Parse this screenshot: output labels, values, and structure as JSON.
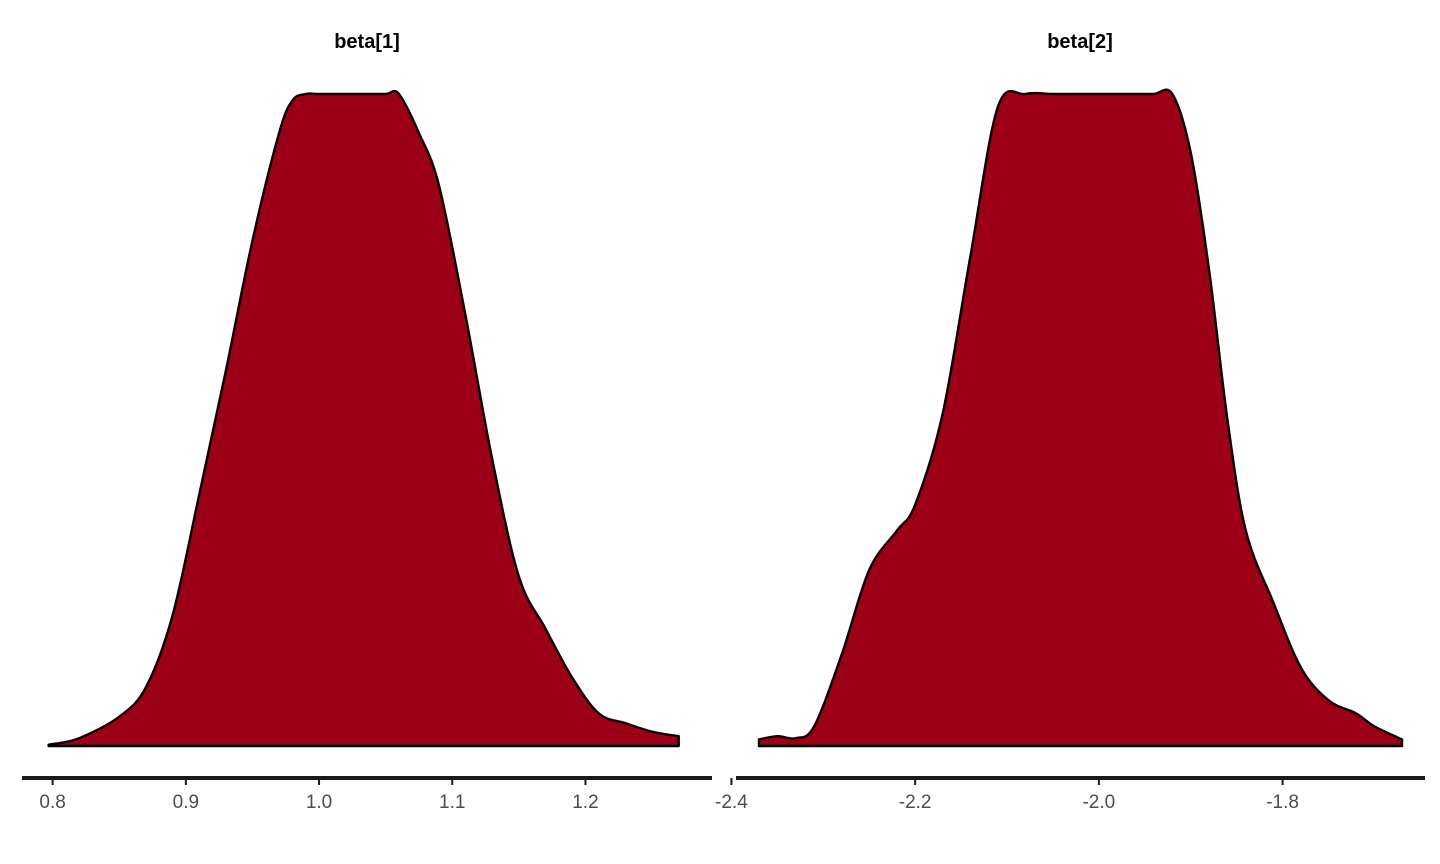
{
  "chart_data": [
    {
      "type": "area",
      "title": "beta[1]",
      "fill_color": "#9B0017",
      "line_color": "#000000",
      "xlim": [
        0.777,
        1.295
      ],
      "x_ticks": [
        "0.8",
        "0.9",
        "1.0",
        "1.1",
        "1.2"
      ],
      "x_tick_values": [
        0.8,
        0.9,
        1.0,
        1.1,
        1.2
      ],
      "density": {
        "x": [
          0.797,
          0.82,
          0.85,
          0.87,
          0.89,
          0.91,
          0.93,
          0.95,
          0.97,
          0.98,
          0.99,
          1.0,
          1.02,
          1.035,
          1.05,
          1.06,
          1.075,
          1.09,
          1.11,
          1.13,
          1.15,
          1.17,
          1.19,
          1.21,
          1.23,
          1.25,
          1.27
        ],
        "y": [
          0.002,
          0.012,
          0.045,
          0.09,
          0.2,
          0.385,
          0.575,
          0.775,
          0.94,
          0.99,
          1.0,
          1.0,
          1.0,
          1.0,
          1.0,
          1.0,
          0.94,
          0.86,
          0.66,
          0.44,
          0.26,
          0.18,
          0.105,
          0.05,
          0.035,
          0.022,
          0.015
        ]
      },
      "grid": false
    },
    {
      "type": "area",
      "title": "beta[2]",
      "fill_color": "#9B0017",
      "line_color": "#000000",
      "xlim": [
        -2.395,
        -1.645
      ],
      "x_ticks": [
        "-2.4",
        "-2.2",
        "-2.0",
        "-1.8"
      ],
      "x_tick_values": [
        -2.4,
        -2.2,
        -2.0,
        -1.8
      ],
      "density": {
        "x": [
          -2.37,
          -2.35,
          -2.33,
          -2.31,
          -2.28,
          -2.25,
          -2.22,
          -2.2,
          -2.17,
          -2.14,
          -2.11,
          -2.08,
          -2.05,
          -2.03,
          -2.01,
          -1.995,
          -1.98,
          -1.96,
          -1.94,
          -1.92,
          -1.9,
          -1.88,
          -1.86,
          -1.84,
          -1.81,
          -1.78,
          -1.75,
          -1.72,
          -1.7,
          -1.67
        ],
        "y": [
          0.01,
          0.015,
          0.012,
          0.03,
          0.14,
          0.27,
          0.33,
          0.37,
          0.51,
          0.75,
          0.98,
          1.0,
          1.0,
          1.0,
          1.0,
          1.0,
          1.0,
          1.0,
          1.0,
          1.0,
          0.91,
          0.73,
          0.5,
          0.33,
          0.22,
          0.12,
          0.07,
          0.05,
          0.03,
          0.01
        ]
      },
      "grid": false
    }
  ]
}
